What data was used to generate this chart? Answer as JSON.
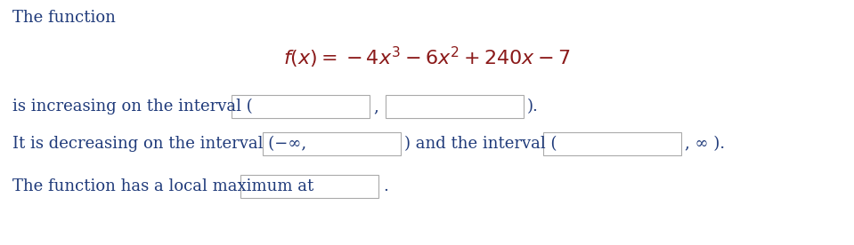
{
  "background_color": "#ffffff",
  "text_color": "#1f3a7a",
  "formula_color": "#8b1a1a",
  "line1": "The function",
  "line3_pre": "is increasing on the interval (",
  "line3_comma": ",",
  "line3_post": ").",
  "line4_pre": "It is decreasing on the interval (−∞,",
  "line4_mid": ") and the interval (",
  "line4_post": ", ∞ ).",
  "line5_pre": "The function has a local maximum at",
  "line5_post": ".",
  "box_facecolor": "#ffffff",
  "box_edgecolor": "#aaaaaa",
  "font_size": 13,
  "formula_font_size": 16,
  "fig_width": 9.59,
  "fig_height": 2.76,
  "dpi": 100
}
